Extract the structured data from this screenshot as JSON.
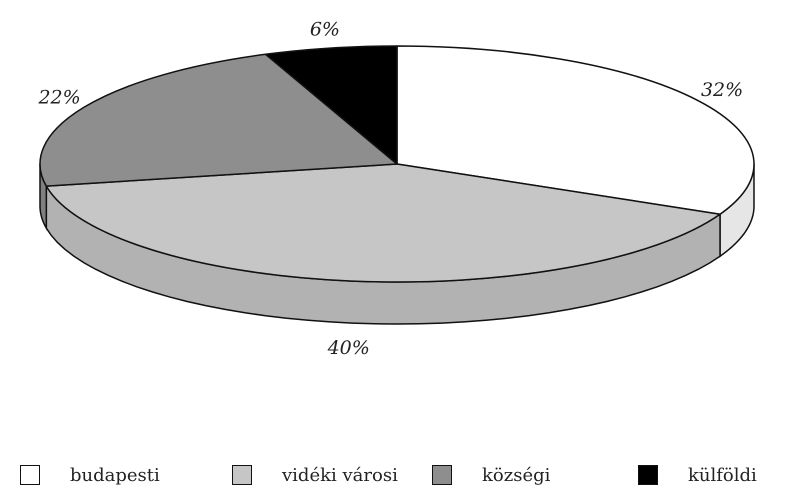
{
  "chart_data": {
    "type": "pie",
    "style": "3d",
    "title": "",
    "slices": [
      {
        "label": "budapesti",
        "value": 32,
        "value_label": "32%",
        "color": "#ffffff"
      },
      {
        "label": "vidéki városi",
        "value": 40,
        "value_label": "40%",
        "color": "#c6c6c6"
      },
      {
        "label": "községi",
        "value": 22,
        "value_label": "22%",
        "color": "#8e8e8e"
      },
      {
        "label": "külföldi",
        "value": 6,
        "value_label": "6%",
        "color": "#000000"
      }
    ],
    "legend_position": "bottom"
  }
}
